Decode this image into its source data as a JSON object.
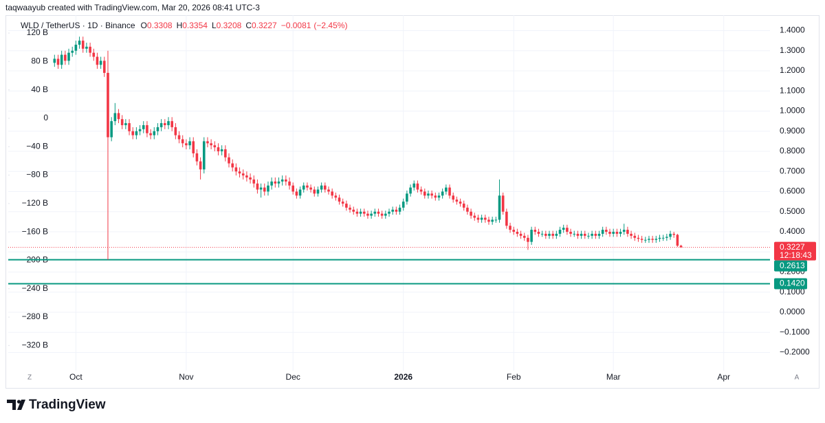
{
  "author_line": "taqwaayub created with TradingView.com, Mar 20, 2026 08:41 UTC-3",
  "brand": "TradingView",
  "buttons": [
    "Z",
    "A"
  ],
  "chart_data": {
    "type": "candlestick",
    "symbol": "WLD / TetherUS · 1D · Binance",
    "ohlc_header": [
      {
        "name": "O",
        "value": 0.3308
      },
      {
        "name": "H",
        "value": 0.3354
      },
      {
        "name": "L",
        "value": 0.3208
      },
      {
        "name": "C",
        "value": 0.3227
      }
    ],
    "change": {
      "value": -0.0081,
      "label": "−0.0081"
    },
    "change_percent": {
      "value": -2.45,
      "label": "(−2.45%)"
    },
    "up_color": "#089981",
    "down_color": "#f23645",
    "x": [
      "2025-09-25",
      "2025-09-26",
      "2025-09-27",
      "2025-09-28",
      "2025-09-29",
      "2025-09-30",
      "2025-10-01",
      "2025-10-02",
      "2025-10-03",
      "2025-10-04",
      "2025-10-05",
      "2025-10-06",
      "2025-10-07",
      "2025-10-08",
      "2025-10-09",
      "2025-10-10",
      "2025-10-11",
      "2025-10-12",
      "2025-10-13",
      "2025-10-14",
      "2025-10-15",
      "2025-10-16",
      "2025-10-17",
      "2025-10-18",
      "2025-10-19",
      "2025-10-20",
      "2025-10-21",
      "2025-10-22",
      "2025-10-23",
      "2025-10-24",
      "2025-10-25",
      "2025-10-26",
      "2025-10-27",
      "2025-10-28",
      "2025-10-29",
      "2025-10-30",
      "2025-10-31",
      "2025-11-01",
      "2025-11-02",
      "2025-11-03",
      "2025-11-04",
      "2025-11-05",
      "2025-11-06",
      "2025-11-07",
      "2025-11-08",
      "2025-11-09",
      "2025-11-10",
      "2025-11-11",
      "2025-11-12",
      "2025-11-13",
      "2025-11-14",
      "2025-11-15",
      "2025-11-16",
      "2025-11-17",
      "2025-11-18",
      "2025-11-19",
      "2025-11-20",
      "2025-11-21",
      "2025-11-22",
      "2025-11-23",
      "2025-11-24",
      "2025-11-25",
      "2025-11-26",
      "2025-11-27",
      "2025-11-28",
      "2025-11-29",
      "2025-11-30",
      "2025-12-01",
      "2025-12-02",
      "2025-12-03",
      "2025-12-04",
      "2025-12-05",
      "2025-12-06",
      "2025-12-07",
      "2025-12-08",
      "2025-12-09",
      "2025-12-10",
      "2025-12-11",
      "2025-12-12",
      "2025-12-13",
      "2025-12-14",
      "2025-12-15",
      "2025-12-16",
      "2025-12-17",
      "2025-12-18",
      "2025-12-19",
      "2025-12-20",
      "2025-12-21",
      "2025-12-22",
      "2025-12-23",
      "2025-12-24",
      "2025-12-25",
      "2025-12-26",
      "2025-12-27",
      "2025-12-28",
      "2025-12-29",
      "2025-12-30",
      "2025-12-31",
      "2026-01-01",
      "2026-01-02",
      "2026-01-03",
      "2026-01-04",
      "2026-01-05",
      "2026-01-06",
      "2026-01-07",
      "2026-01-08",
      "2026-01-09",
      "2026-01-10",
      "2026-01-11",
      "2026-01-12",
      "2026-01-13",
      "2026-01-14",
      "2026-01-15",
      "2026-01-16",
      "2026-01-17",
      "2026-01-18",
      "2026-01-19",
      "2026-01-20",
      "2026-01-21",
      "2026-01-22",
      "2026-01-23",
      "2026-01-24",
      "2026-01-25",
      "2026-01-26",
      "2026-01-27",
      "2026-01-28",
      "2026-01-29",
      "2026-01-30",
      "2026-01-31",
      "2026-02-01",
      "2026-02-02",
      "2026-02-03",
      "2026-02-04",
      "2026-02-05",
      "2026-02-06",
      "2026-02-07",
      "2026-02-08",
      "2026-02-09",
      "2026-02-10",
      "2026-02-11",
      "2026-02-12",
      "2026-02-13",
      "2026-02-14",
      "2026-02-15",
      "2026-02-16",
      "2026-02-17",
      "2026-02-18",
      "2026-02-19",
      "2026-02-20",
      "2026-02-21",
      "2026-02-22",
      "2026-02-23",
      "2026-02-24",
      "2026-02-25",
      "2026-02-26",
      "2026-02-27",
      "2026-02-28",
      "2026-03-01",
      "2026-03-02",
      "2026-03-03",
      "2026-03-04",
      "2026-03-05",
      "2026-03-06",
      "2026-03-07",
      "2026-03-08",
      "2026-03-09",
      "2026-03-10",
      "2026-03-11",
      "2026-03-12",
      "2026-03-13",
      "2026-03-14",
      "2026-03-15",
      "2026-03-16",
      "2026-03-17",
      "2026-03-18",
      "2026-03-19",
      "2026-03-20"
    ],
    "open": [
      1.24,
      1.26,
      1.23,
      1.28,
      1.25,
      1.29,
      1.3,
      1.33,
      1.35,
      1.31,
      1.32,
      1.29,
      1.27,
      1.23,
      1.25,
      1.19,
      0.87,
      0.95,
      0.99,
      0.96,
      0.93,
      0.94,
      0.9,
      0.88,
      0.9,
      0.91,
      0.93,
      0.89,
      0.88,
      0.9,
      0.92,
      0.94,
      0.93,
      0.95,
      0.92,
      0.88,
      0.86,
      0.84,
      0.83,
      0.85,
      0.79,
      0.75,
      0.71,
      0.85,
      0.84,
      0.83,
      0.82,
      0.8,
      0.81,
      0.77,
      0.74,
      0.72,
      0.7,
      0.69,
      0.68,
      0.67,
      0.66,
      0.64,
      0.61,
      0.62,
      0.6,
      0.63,
      0.65,
      0.64,
      0.65,
      0.66,
      0.65,
      0.63,
      0.6,
      0.58,
      0.61,
      0.63,
      0.62,
      0.61,
      0.59,
      0.61,
      0.63,
      0.61,
      0.6,
      0.58,
      0.57,
      0.55,
      0.54,
      0.52,
      0.51,
      0.5,
      0.49,
      0.5,
      0.49,
      0.48,
      0.49,
      0.5,
      0.49,
      0.48,
      0.49,
      0.5,
      0.51,
      0.5,
      0.52,
      0.55,
      0.59,
      0.62,
      0.64,
      0.61,
      0.6,
      0.58,
      0.59,
      0.58,
      0.57,
      0.58,
      0.6,
      0.62,
      0.58,
      0.56,
      0.55,
      0.54,
      0.52,
      0.5,
      0.48,
      0.47,
      0.46,
      0.47,
      0.46,
      0.45,
      0.46,
      0.46,
      0.58,
      0.5,
      0.43,
      0.41,
      0.4,
      0.39,
      0.38,
      0.37,
      0.35,
      0.41,
      0.4,
      0.39,
      0.39,
      0.38,
      0.39,
      0.38,
      0.39,
      0.41,
      0.42,
      0.4,
      0.39,
      0.39,
      0.38,
      0.39,
      0.38,
      0.38,
      0.39,
      0.38,
      0.39,
      0.41,
      0.4,
      0.39,
      0.4,
      0.39,
      0.4,
      0.41,
      0.39,
      0.38,
      0.37,
      0.365,
      0.36,
      0.36,
      0.365,
      0.36,
      0.365,
      0.37,
      0.37,
      0.375,
      0.39,
      0.385,
      0.3308
    ],
    "high": [
      1.28,
      1.28,
      1.3,
      1.3,
      1.31,
      1.32,
      1.35,
      1.37,
      1.37,
      1.34,
      1.34,
      1.31,
      1.29,
      1.27,
      1.27,
      1.3,
      0.97,
      1.04,
      1.01,
      0.98,
      0.96,
      0.96,
      0.92,
      0.92,
      0.93,
      0.95,
      0.95,
      0.91,
      0.92,
      0.94,
      0.96,
      0.96,
      0.97,
      0.97,
      0.94,
      0.9,
      0.88,
      0.86,
      0.87,
      0.87,
      0.81,
      0.77,
      0.87,
      0.87,
      0.86,
      0.85,
      0.84,
      0.83,
      0.83,
      0.79,
      0.76,
      0.74,
      0.72,
      0.71,
      0.7,
      0.69,
      0.68,
      0.66,
      0.64,
      0.64,
      0.65,
      0.67,
      0.67,
      0.67,
      0.68,
      0.68,
      0.67,
      0.645,
      0.615,
      0.625,
      0.645,
      0.645,
      0.635,
      0.625,
      0.625,
      0.645,
      0.645,
      0.625,
      0.615,
      0.595,
      0.585,
      0.565,
      0.555,
      0.535,
      0.525,
      0.515,
      0.515,
      0.515,
      0.505,
      0.505,
      0.515,
      0.515,
      0.505,
      0.505,
      0.515,
      0.525,
      0.525,
      0.535,
      0.565,
      0.605,
      0.635,
      0.655,
      0.655,
      0.625,
      0.615,
      0.605,
      0.605,
      0.595,
      0.595,
      0.615,
      0.635,
      0.635,
      0.595,
      0.575,
      0.565,
      0.555,
      0.535,
      0.515,
      0.495,
      0.485,
      0.485,
      0.485,
      0.475,
      0.475,
      0.475,
      0.66,
      0.595,
      0.515,
      0.445,
      0.425,
      0.415,
      0.405,
      0.395,
      0.385,
      0.425,
      0.425,
      0.415,
      0.405,
      0.405,
      0.405,
      0.405,
      0.405,
      0.425,
      0.435,
      0.435,
      0.415,
      0.405,
      0.405,
      0.405,
      0.405,
      0.395,
      0.405,
      0.405,
      0.405,
      0.425,
      0.425,
      0.415,
      0.415,
      0.415,
      0.415,
      0.44,
      0.425,
      0.405,
      0.395,
      0.385,
      0.38,
      0.375,
      0.38,
      0.38,
      0.38,
      0.385,
      0.385,
      0.39,
      0.405,
      0.4,
      0.39,
      0.3354
    ],
    "low": [
      1.22,
      1.21,
      1.21,
      1.23,
      1.23,
      1.27,
      1.28,
      1.31,
      1.29,
      1.29,
      1.27,
      1.25,
      1.21,
      1.21,
      1.17,
      0.2613,
      0.85,
      0.93,
      0.94,
      0.91,
      0.91,
      0.88,
      0.86,
      0.86,
      0.88,
      0.89,
      0.87,
      0.86,
      0.86,
      0.88,
      0.9,
      0.91,
      0.91,
      0.9,
      0.86,
      0.84,
      0.82,
      0.81,
      0.81,
      0.77,
      0.73,
      0.66,
      0.69,
      0.82,
      0.81,
      0.8,
      0.78,
      0.78,
      0.75,
      0.72,
      0.7,
      0.68,
      0.67,
      0.66,
      0.65,
      0.64,
      0.62,
      0.59,
      0.57,
      0.58,
      0.58,
      0.61,
      0.62,
      0.62,
      0.63,
      0.63,
      0.61,
      0.585,
      0.565,
      0.565,
      0.595,
      0.605,
      0.595,
      0.575,
      0.575,
      0.595,
      0.595,
      0.585,
      0.565,
      0.555,
      0.535,
      0.525,
      0.505,
      0.495,
      0.485,
      0.475,
      0.475,
      0.475,
      0.465,
      0.465,
      0.475,
      0.475,
      0.465,
      0.465,
      0.475,
      0.485,
      0.485,
      0.485,
      0.505,
      0.535,
      0.575,
      0.605,
      0.595,
      0.585,
      0.565,
      0.565,
      0.565,
      0.555,
      0.555,
      0.565,
      0.585,
      0.565,
      0.545,
      0.535,
      0.525,
      0.505,
      0.485,
      0.465,
      0.455,
      0.445,
      0.445,
      0.445,
      0.435,
      0.435,
      0.445,
      0.445,
      0.485,
      0.415,
      0.395,
      0.385,
      0.375,
      0.365,
      0.355,
      0.31,
      0.335,
      0.385,
      0.375,
      0.375,
      0.365,
      0.365,
      0.365,
      0.365,
      0.375,
      0.395,
      0.385,
      0.375,
      0.375,
      0.365,
      0.365,
      0.365,
      0.365,
      0.365,
      0.365,
      0.365,
      0.375,
      0.385,
      0.375,
      0.375,
      0.375,
      0.375,
      0.385,
      0.375,
      0.365,
      0.355,
      0.35,
      0.345,
      0.345,
      0.345,
      0.345,
      0.345,
      0.35,
      0.355,
      0.355,
      0.36,
      0.37,
      0.325,
      0.3208
    ],
    "close": [
      1.26,
      1.23,
      1.28,
      1.25,
      1.29,
      1.3,
      1.33,
      1.35,
      1.31,
      1.32,
      1.29,
      1.27,
      1.23,
      1.25,
      1.19,
      0.87,
      0.95,
      0.99,
      0.96,
      0.93,
      0.94,
      0.9,
      0.88,
      0.9,
      0.91,
      0.93,
      0.89,
      0.88,
      0.9,
      0.92,
      0.94,
      0.93,
      0.95,
      0.92,
      0.88,
      0.86,
      0.84,
      0.83,
      0.85,
      0.79,
      0.75,
      0.71,
      0.85,
      0.84,
      0.83,
      0.82,
      0.8,
      0.81,
      0.77,
      0.74,
      0.72,
      0.7,
      0.69,
      0.68,
      0.67,
      0.66,
      0.64,
      0.61,
      0.62,
      0.6,
      0.63,
      0.65,
      0.64,
      0.65,
      0.66,
      0.65,
      0.63,
      0.6,
      0.58,
      0.61,
      0.63,
      0.62,
      0.61,
      0.59,
      0.61,
      0.63,
      0.61,
      0.6,
      0.58,
      0.57,
      0.55,
      0.54,
      0.52,
      0.51,
      0.5,
      0.49,
      0.5,
      0.49,
      0.48,
      0.49,
      0.5,
      0.49,
      0.48,
      0.49,
      0.5,
      0.51,
      0.5,
      0.52,
      0.55,
      0.59,
      0.62,
      0.64,
      0.61,
      0.6,
      0.58,
      0.59,
      0.58,
      0.57,
      0.58,
      0.6,
      0.62,
      0.58,
      0.56,
      0.55,
      0.54,
      0.52,
      0.5,
      0.48,
      0.47,
      0.46,
      0.47,
      0.46,
      0.45,
      0.46,
      0.46,
      0.58,
      0.5,
      0.43,
      0.41,
      0.4,
      0.39,
      0.38,
      0.37,
      0.35,
      0.41,
      0.4,
      0.39,
      0.39,
      0.38,
      0.39,
      0.38,
      0.39,
      0.41,
      0.42,
      0.4,
      0.39,
      0.39,
      0.38,
      0.39,
      0.38,
      0.38,
      0.39,
      0.38,
      0.39,
      0.41,
      0.4,
      0.39,
      0.4,
      0.39,
      0.4,
      0.41,
      0.39,
      0.38,
      0.37,
      0.365,
      0.36,
      0.36,
      0.365,
      0.36,
      0.365,
      0.37,
      0.37,
      0.375,
      0.39,
      0.385,
      0.3308,
      0.3227
    ],
    "xlim": [
      "2025-09-12",
      "2026-04-14"
    ],
    "xticks": [
      {
        "value": "2025-10-01",
        "label": "Oct"
      },
      {
        "value": "2025-11-01",
        "label": "Nov"
      },
      {
        "value": "2025-12-01",
        "label": "Dec"
      },
      {
        "value": "2026-01-01",
        "label": "2026"
      },
      {
        "value": "2026-02-01",
        "label": "Feb"
      },
      {
        "value": "2026-03-01",
        "label": "Mar"
      },
      {
        "value": "2026-04-01",
        "label": "Apr"
      }
    ],
    "ylim": [
      -0.2769,
      1.4496
    ],
    "yticks": [
      {
        "value": 1.4,
        "label": "1.4000"
      },
      {
        "value": 1.3,
        "label": "1.3000"
      },
      {
        "value": 1.2,
        "label": "1.2000"
      },
      {
        "value": 1.1,
        "label": "1.1000"
      },
      {
        "value": 1.0,
        "label": "1.0000"
      },
      {
        "value": 0.9,
        "label": "0.9000"
      },
      {
        "value": 0.8,
        "label": "0.8000"
      },
      {
        "value": 0.7,
        "label": "0.7000"
      },
      {
        "value": 0.6,
        "label": "0.6000"
      },
      {
        "value": 0.5,
        "label": "0.5000"
      },
      {
        "value": 0.4,
        "label": "0.4000"
      },
      {
        "value": 0.3,
        "label": "0.3000"
      },
      {
        "value": 0.2,
        "label": "0.2000"
      },
      {
        "value": 0.1,
        "label": "0.1000"
      },
      {
        "value": 0,
        "label": "0.0000"
      },
      {
        "value": -0.1,
        "label": "−0.1000"
      },
      {
        "value": -0.2,
        "label": "−0.2000"
      }
    ],
    "y2lim": [
      -351.6,
      137.5
    ],
    "y2ticks": [
      {
        "value": 120,
        "label": "120 B"
      },
      {
        "value": 80,
        "label": "80 B"
      },
      {
        "value": 40,
        "label": "40 B"
      },
      0,
      {
        "value": -40,
        "label": "−40 B"
      },
      {
        "value": -80,
        "label": "−80 B"
      },
      {
        "value": -120,
        "label": "−120 B"
      },
      {
        "value": -160,
        "label": "−160 B"
      },
      {
        "value": -200,
        "label": "−200 B"
      },
      {
        "value": -240,
        "label": "−240 B"
      },
      {
        "value": -280,
        "label": "−280 B"
      },
      {
        "value": -320,
        "label": "−320 B"
      }
    ],
    "grid": true,
    "last_price": {
      "value": 0.3227,
      "label": "0.3227",
      "countdown": "12:18:43",
      "color": "#f23645"
    },
    "price_lines": [
      {
        "value": 0.2613,
        "label": "0.2613",
        "color": "#089981"
      },
      {
        "value": 0.142,
        "label": "0.1420",
        "color": "#089981"
      }
    ]
  }
}
